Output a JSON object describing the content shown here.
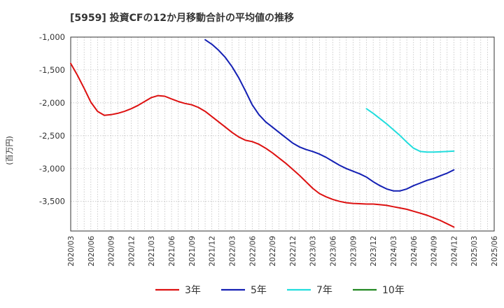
{
  "chart_data": {
    "type": "line",
    "title": "[5959]  投資CFの12か月移動合計の平均値の推移",
    "ylabel": "(百万円)",
    "xlabel": "",
    "ylim": [
      -3950,
      -1000
    ],
    "y_ticks": [
      -1000,
      -1500,
      -2000,
      -2500,
      -3000,
      -3500
    ],
    "y_tick_labels": [
      "-1,000",
      "-1,500",
      "-2,000",
      "-2,500",
      "-3,000",
      "-3,500"
    ],
    "x_ticks": [
      "2020/03",
      "2020/06",
      "2020/09",
      "2020/12",
      "2021/03",
      "2021/06",
      "2021/09",
      "2021/12",
      "2022/03",
      "2022/06",
      "2022/09",
      "2022/12",
      "2023/03",
      "2023/06",
      "2023/09",
      "2023/12",
      "2024/03",
      "2024/06",
      "2024/09",
      "2024/12",
      "2025/03",
      "2025/06"
    ],
    "grid": true,
    "legend_position": "bottom",
    "series": [
      {
        "name": "3年",
        "color": "#dd1111",
        "x": [
          "2020/03",
          "2020/04",
          "2020/05",
          "2020/06",
          "2020/07",
          "2020/08",
          "2020/09",
          "2020/10",
          "2020/11",
          "2020/12",
          "2021/01",
          "2021/02",
          "2021/03",
          "2021/04",
          "2021/05",
          "2021/06",
          "2021/07",
          "2021/08",
          "2021/09",
          "2021/10",
          "2021/11",
          "2021/12",
          "2022/01",
          "2022/02",
          "2022/03",
          "2022/04",
          "2022/05",
          "2022/06",
          "2022/07",
          "2022/08",
          "2022/09",
          "2022/10",
          "2022/11",
          "2022/12",
          "2023/01",
          "2023/02",
          "2023/03",
          "2023/04",
          "2023/05",
          "2023/06",
          "2023/07",
          "2023/08",
          "2023/09",
          "2023/10",
          "2023/11",
          "2023/12",
          "2024/01",
          "2024/02",
          "2024/03",
          "2024/04",
          "2024/05",
          "2024/06",
          "2024/07",
          "2024/08",
          "2024/09",
          "2024/10",
          "2024/11",
          "2024/12"
        ],
        "y": [
          -1400,
          -1580,
          -1780,
          -1990,
          -2130,
          -2190,
          -2180,
          -2160,
          -2130,
          -2090,
          -2040,
          -1980,
          -1920,
          -1890,
          -1900,
          -1940,
          -1980,
          -2010,
          -2030,
          -2070,
          -2130,
          -2210,
          -2290,
          -2370,
          -2450,
          -2520,
          -2570,
          -2590,
          -2630,
          -2690,
          -2760,
          -2840,
          -2920,
          -3010,
          -3100,
          -3200,
          -3300,
          -3380,
          -3430,
          -3470,
          -3500,
          -3520,
          -3530,
          -3535,
          -3540,
          -3540,
          -3550,
          -3560,
          -3580,
          -3600,
          -3620,
          -3650,
          -3680,
          -3710,
          -3750,
          -3790,
          -3840,
          -3890
        ]
      },
      {
        "name": "5年",
        "color": "#1420b4",
        "x": [
          "2021/11",
          "2021/12",
          "2022/01",
          "2022/02",
          "2022/03",
          "2022/04",
          "2022/05",
          "2022/06",
          "2022/07",
          "2022/08",
          "2022/09",
          "2022/10",
          "2022/11",
          "2022/12",
          "2023/01",
          "2023/02",
          "2023/03",
          "2023/04",
          "2023/05",
          "2023/06",
          "2023/07",
          "2023/08",
          "2023/09",
          "2023/10",
          "2023/11",
          "2023/12",
          "2024/01",
          "2024/02",
          "2024/03",
          "2024/04",
          "2024/05",
          "2024/06",
          "2024/07",
          "2024/08",
          "2024/09",
          "2024/10",
          "2024/11",
          "2024/12"
        ],
        "y": [
          -1040,
          -1110,
          -1200,
          -1310,
          -1450,
          -1620,
          -1820,
          -2030,
          -2180,
          -2290,
          -2370,
          -2450,
          -2530,
          -2610,
          -2670,
          -2710,
          -2740,
          -2780,
          -2830,
          -2890,
          -2950,
          -3000,
          -3040,
          -3080,
          -3130,
          -3200,
          -3260,
          -3310,
          -3340,
          -3340,
          -3310,
          -3260,
          -3220,
          -3180,
          -3150,
          -3110,
          -3070,
          -3020
        ]
      },
      {
        "name": "7年",
        "color": "#22dddd",
        "x": [
          "2023/11",
          "2023/12",
          "2024/01",
          "2024/02",
          "2024/03",
          "2024/04",
          "2024/05",
          "2024/06",
          "2024/07",
          "2024/08",
          "2024/09",
          "2024/10",
          "2024/11",
          "2024/12"
        ],
        "y": [
          -2090,
          -2160,
          -2240,
          -2320,
          -2410,
          -2500,
          -2600,
          -2690,
          -2740,
          -2750,
          -2750,
          -2745,
          -2740,
          -2735
        ]
      },
      {
        "name": "10年",
        "color": "#228822",
        "x": [],
        "y": []
      }
    ]
  }
}
